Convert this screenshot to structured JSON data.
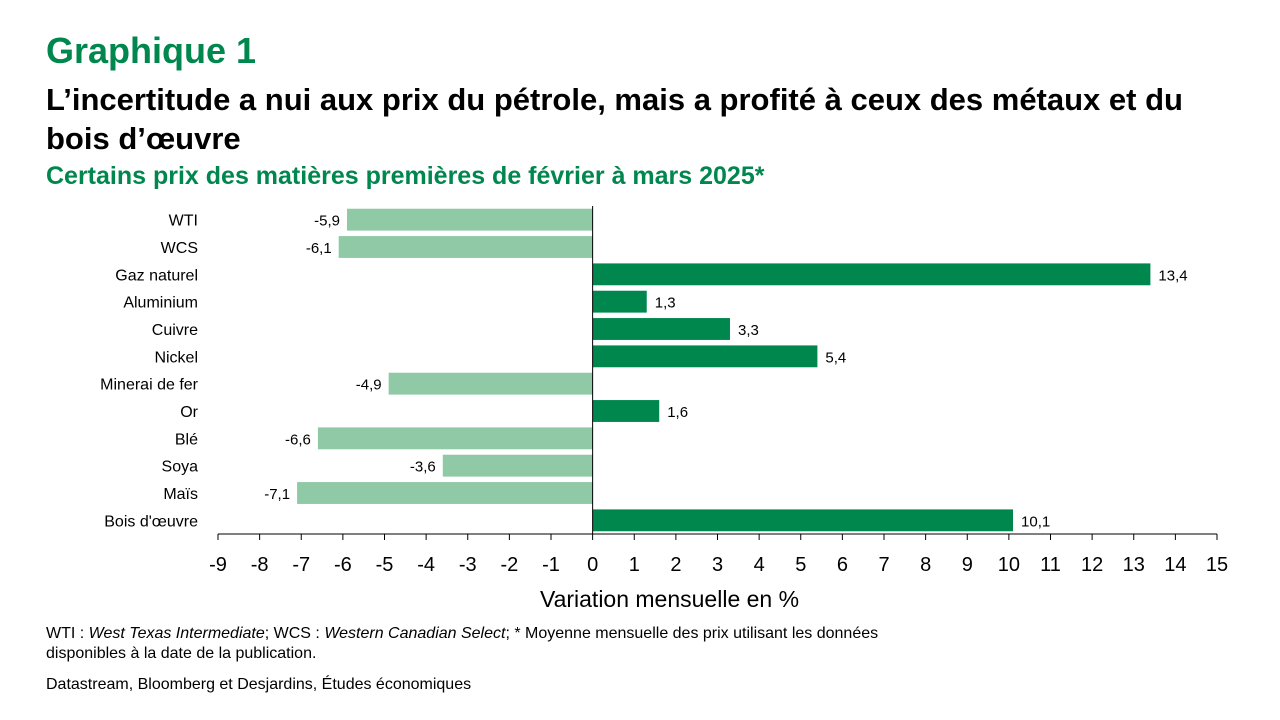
{
  "header": {
    "label": "Graphique 1",
    "title": "L’incertitude a nui aux prix du pétrole, mais a profité à ceux des métaux et du bois d’œuvre",
    "subtitle": "Certains prix des matières premières de février à mars 2025*"
  },
  "footer": {
    "note_parts": [
      "WTI : ",
      "West Texas Intermediate",
      "; WCS : ",
      "Western Canadian Select",
      "; * Moyenne mensuelle des prix utilisant les données disponibles à la date de la publication."
    ],
    "source": "Datastream, Bloomberg et Desjardins, Études économiques"
  },
  "colors": {
    "brand_green": "#00874E",
    "positive_bar": "#00874E",
    "negative_bar": "#8FC9A5"
  },
  "chart_data": {
    "type": "bar",
    "orientation": "horizontal",
    "categories": [
      "WTI",
      "WCS",
      "Gaz naturel",
      "Aluminium",
      "Cuivre",
      "Nickel",
      "Minerai de fer",
      "Or",
      "Blé",
      "Soya",
      "Maïs",
      "Bois d'œuvre"
    ],
    "values": [
      -5.9,
      -6.1,
      13.4,
      1.3,
      3.3,
      5.4,
      -4.9,
      1.6,
      -6.6,
      -3.6,
      -7.1,
      10.1
    ],
    "value_labels": [
      "-5,9",
      "-6,1",
      "13,4",
      "1,3",
      "3,3",
      "5,4",
      "-4,9",
      "1,6",
      "-6,6",
      "-3,6",
      "-7,1",
      "10,1"
    ],
    "xlim": [
      -9,
      15
    ],
    "xticks": [
      -9,
      -8,
      -7,
      -6,
      -5,
      -4,
      -3,
      -2,
      -1,
      0,
      1,
      2,
      3,
      4,
      5,
      6,
      7,
      8,
      9,
      10,
      11,
      12,
      13,
      14,
      15
    ],
    "xlabel": "Variation mensuelle en %",
    "grid": false,
    "legend": "none"
  }
}
